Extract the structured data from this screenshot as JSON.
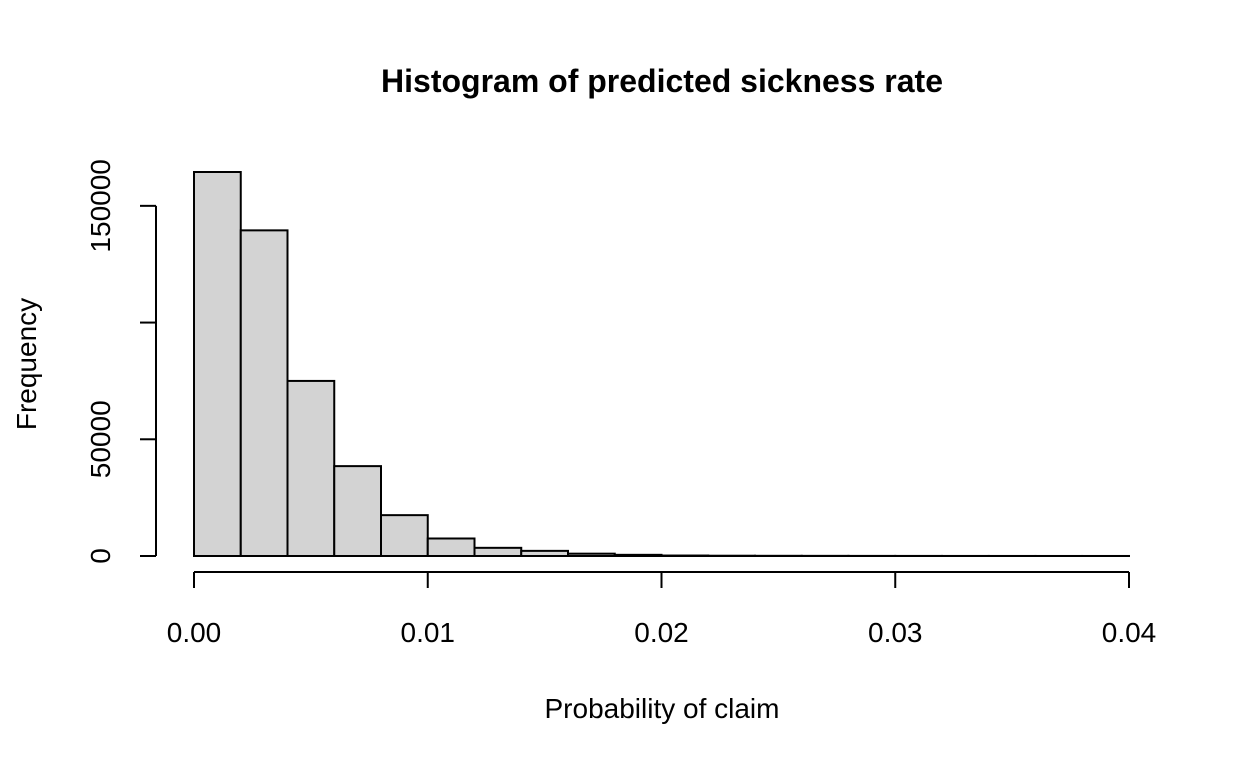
{
  "chart_data": {
    "type": "bar",
    "title": "Histogram of predicted sickness rate",
    "xlabel": "Probability of claim",
    "ylabel": "Frequency",
    "bin_edges": [
      0.0,
      0.002,
      0.004,
      0.006,
      0.008,
      0.01,
      0.012,
      0.014,
      0.016,
      0.018,
      0.02,
      0.022,
      0.024,
      0.026,
      0.028,
      0.03,
      0.032,
      0.034,
      0.036,
      0.038,
      0.04
    ],
    "values": [
      164500,
      139500,
      75000,
      38500,
      17500,
      7500,
      3500,
      2200,
      1000,
      500,
      200,
      120,
      80,
      60,
      40,
      30,
      20,
      15,
      10,
      10
    ],
    "xlim": [
      0,
      0.04
    ],
    "ylim": [
      0,
      164500
    ],
    "x_ticks": [
      0,
      0.01,
      0.02,
      0.03,
      0.04
    ],
    "x_tick_labels": [
      "0.00",
      "0.01",
      "0.02",
      "0.03",
      "0.04"
    ],
    "y_ticks": [
      0,
      50000,
      100000,
      150000
    ],
    "y_tick_labels": [
      "0",
      "50000",
      "",
      "150000"
    ],
    "grid": false,
    "bar_fill": "#d3d3d3",
    "bar_stroke": "#000000"
  }
}
